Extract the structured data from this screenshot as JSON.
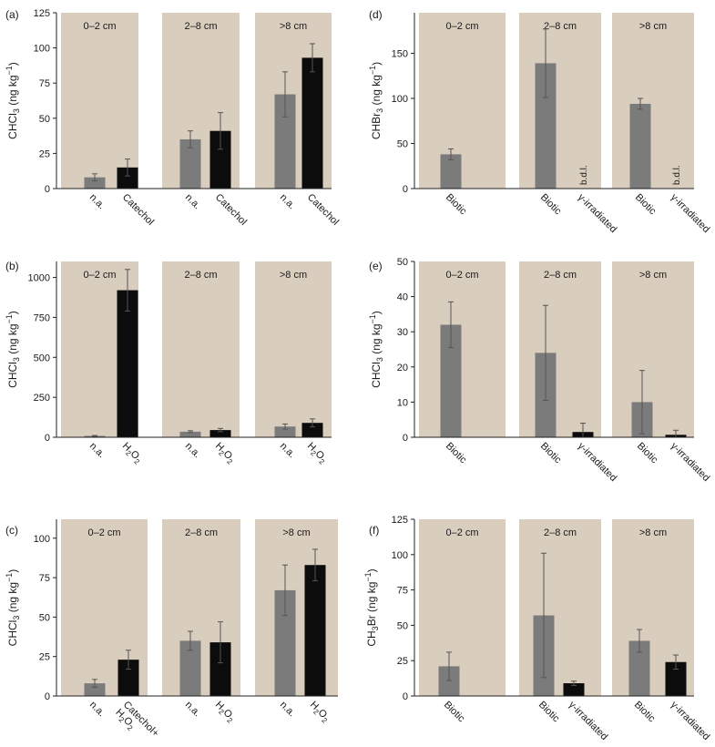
{
  "colors": {
    "panel_background": "#d9cdbd",
    "bar_grey": "#7b7b7b",
    "bar_black": "#0c0c0c",
    "axis": "#222222"
  },
  "chart_data": [
    {
      "id": "a",
      "type": "bar",
      "panel_label": "(a)",
      "ylabel_main": "CHCl",
      "ylabel_sub": "3",
      "ylabel_unit": " (ng kg",
      "ylabel_sup": "−1",
      "ylabel_close": ")",
      "ylim": [
        0,
        125
      ],
      "yticks": [
        0,
        25,
        50,
        75,
        100,
        125
      ],
      "groups": [
        {
          "label": "0–2 cm",
          "bars": [
            {
              "category": "n.a.",
              "value": 8,
              "err": 2.5,
              "color": "grey"
            },
            {
              "category": "Catechol",
              "value": 15,
              "err": 6,
              "color": "black"
            }
          ]
        },
        {
          "label": "2–8 cm",
          "bars": [
            {
              "category": "n.a.",
              "value": 35,
              "err": 6,
              "color": "grey"
            },
            {
              "category": "Catechol",
              "value": 41,
              "err": 13,
              "color": "black"
            }
          ]
        },
        {
          "label": ">8 cm",
          "bars": [
            {
              "category": "n.a.",
              "value": 67,
              "err": 16,
              "color": "grey"
            },
            {
              "category": "Catechol",
              "value": 93,
              "err": 10,
              "color": "black"
            }
          ]
        }
      ]
    },
    {
      "id": "b",
      "type": "bar",
      "panel_label": "(b)",
      "ylabel_main": "CHCl",
      "ylabel_sub": "3",
      "ylabel_unit": " (ng kg",
      "ylabel_sup": "−1",
      "ylabel_close": ")",
      "ylim": [
        0,
        1100
      ],
      "yticks": [
        0,
        250,
        500,
        750,
        1000
      ],
      "groups": [
        {
          "label": "0–2 cm",
          "bars": [
            {
              "category": "n.a.",
              "value": 8,
              "err": 3,
              "color": "grey"
            },
            {
              "category": "H2O2",
              "value": 920,
              "err": 130,
              "color": "black"
            }
          ]
        },
        {
          "label": "2–8 cm",
          "bars": [
            {
              "category": "n.a.",
              "value": 35,
              "err": 6,
              "color": "grey"
            },
            {
              "category": "H2O2",
              "value": 45,
              "err": 10,
              "color": "black"
            }
          ]
        },
        {
          "label": ">8 cm",
          "bars": [
            {
              "category": "n.a.",
              "value": 67,
              "err": 16,
              "color": "grey"
            },
            {
              "category": "H2O2",
              "value": 90,
              "err": 25,
              "color": "black"
            }
          ]
        }
      ]
    },
    {
      "id": "c",
      "type": "bar",
      "panel_label": "(c)",
      "ylabel_main": "CHCl",
      "ylabel_sub": "3",
      "ylabel_unit": " (ng kg",
      "ylabel_sup": "−1",
      "ylabel_close": ")",
      "ylim": [
        0,
        112
      ],
      "yticks": [
        0,
        25,
        50,
        75,
        100
      ],
      "groups": [
        {
          "label": "0–2 cm",
          "bars": [
            {
              "category": "n.a.",
              "value": 8,
              "err": 2.5,
              "color": "grey"
            },
            {
              "category": "Catechol+H2O2",
              "value": 23,
              "err": 6,
              "color": "black"
            }
          ]
        },
        {
          "label": "2–8 cm",
          "bars": [
            {
              "category": "n.a.",
              "value": 35,
              "err": 6,
              "color": "grey"
            },
            {
              "category": "H2O2",
              "value": 34,
              "err": 13,
              "color": "black"
            }
          ]
        },
        {
          "label": ">8 cm",
          "bars": [
            {
              "category": "n.a.",
              "value": 67,
              "err": 16,
              "color": "grey"
            },
            {
              "category": "H2O2",
              "value": 83,
              "err": 10,
              "color": "black"
            }
          ]
        }
      ]
    },
    {
      "id": "d",
      "type": "bar",
      "panel_label": "(d)",
      "ylabel_main": "CHBr",
      "ylabel_sub": "3",
      "ylabel_unit": " (ng kg",
      "ylabel_sup": "−1",
      "ylabel_close": ")",
      "ylim": [
        0,
        195
      ],
      "yticks": [
        0,
        50,
        100,
        150
      ],
      "groups": [
        {
          "label": "0–2 cm",
          "bars": [
            {
              "category": "Biotic",
              "value": 38,
              "err": 6,
              "color": "grey"
            }
          ]
        },
        {
          "label": "2–8 cm",
          "bars": [
            {
              "category": "Biotic",
              "value": 139,
              "err": 38,
              "color": "grey"
            },
            {
              "category": "γ-irradiated",
              "value": 0,
              "err": 0,
              "color": "black",
              "note": "b.d.l."
            }
          ]
        },
        {
          "label": ">8 cm",
          "bars": [
            {
              "category": "Biotic",
              "value": 94,
              "err": 6,
              "color": "grey"
            },
            {
              "category": "γ-irradiated",
              "value": 0,
              "err": 0,
              "color": "black",
              "note": "b.d.l."
            }
          ]
        }
      ]
    },
    {
      "id": "e",
      "type": "bar",
      "panel_label": "(e)",
      "ylabel_main": "CHCl",
      "ylabel_sub": "3",
      "ylabel_unit": " (ng kg",
      "ylabel_sup": "−1",
      "ylabel_close": ")",
      "ylim": [
        0,
        50
      ],
      "yticks": [
        0,
        10,
        20,
        30,
        40,
        50
      ],
      "groups": [
        {
          "label": "0–2 cm",
          "bars": [
            {
              "category": "Biotic",
              "value": 32,
              "err": 6.5,
              "color": "grey"
            }
          ]
        },
        {
          "label": "2–8 cm",
          "bars": [
            {
              "category": "Biotic",
              "value": 24,
              "err": 13.5,
              "color": "grey"
            },
            {
              "category": "γ-irradiated",
              "value": 1.5,
              "err": 2.5,
              "color": "black"
            }
          ]
        },
        {
          "label": ">8 cm",
          "bars": [
            {
              "category": "Biotic",
              "value": 10,
              "err": 9,
              "color": "grey"
            },
            {
              "category": "γ-irradiated",
              "value": 0.7,
              "err": 1.3,
              "color": "black"
            }
          ]
        }
      ]
    },
    {
      "id": "f",
      "type": "bar",
      "panel_label": "(f)",
      "ylabel_main": "CH",
      "ylabel_sub": "3",
      "ylabel_unit": "Br (ng kg",
      "ylabel_sup": "−1",
      "ylabel_close": ")",
      "ylim": [
        0,
        125
      ],
      "yticks": [
        0,
        25,
        50,
        75,
        100,
        125
      ],
      "groups": [
        {
          "label": "0–2 cm",
          "bars": [
            {
              "category": "Biotic",
              "value": 21,
              "err": 10,
              "color": "grey"
            }
          ]
        },
        {
          "label": "2–8 cm",
          "bars": [
            {
              "category": "Biotic",
              "value": 57,
              "err": 44,
              "color": "grey"
            },
            {
              "category": "γ-irradiated",
              "value": 9,
              "err": 1.5,
              "color": "black"
            }
          ]
        },
        {
          "label": ">8 cm",
          "bars": [
            {
              "category": "Biotic",
              "value": 39,
              "err": 8,
              "color": "grey"
            },
            {
              "category": "γ-irradiated",
              "value": 24,
              "err": 5,
              "color": "black"
            }
          ]
        }
      ]
    }
  ]
}
